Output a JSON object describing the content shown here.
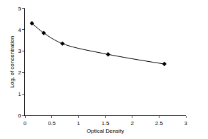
{
  "chart_data": {
    "type": "line",
    "x_label": "Optical Density",
    "y_label": "Log. of concentration",
    "x": [
      0.13,
      0.35,
      0.7,
      1.55,
      2.6
    ],
    "values": [
      4.3,
      3.85,
      3.35,
      2.85,
      2.4
    ],
    "color": "#000000",
    "marker": "diamond",
    "line_style": "solid",
    "xlim": [
      0,
      3
    ],
    "xticks": [
      0,
      0.5,
      1,
      1.5,
      2,
      2.5,
      3
    ],
    "ylim": [
      0,
      5
    ],
    "yticks": [
      0,
      1,
      2,
      3,
      4,
      5
    ],
    "grid": false
  }
}
